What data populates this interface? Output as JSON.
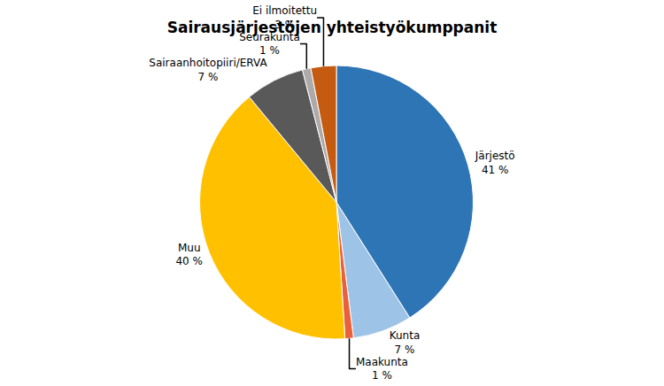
{
  "chart_data": {
    "type": "pie",
    "title": "Sairausjärjestöjen yhteistyökumppanit",
    "categories": [
      "Järjestö",
      "Kunta",
      "Maakunta",
      "Muu",
      "Sairaanhoitopiiri/ERVA",
      "Seurakunta",
      "Ei ilmoitettu"
    ],
    "values": [
      41,
      7,
      1,
      40,
      7,
      1,
      3
    ],
    "value_labels": [
      "41 %",
      "7 %",
      "1 %",
      "40 %",
      "7 %",
      "1 %",
      "3 %"
    ],
    "data_labels": true,
    "colors": [
      "#2E75B6",
      "#9DC3E6",
      "#E8603C",
      "#FFC000",
      "#595959",
      "#AEAAAA",
      "#C55A11"
    ]
  }
}
